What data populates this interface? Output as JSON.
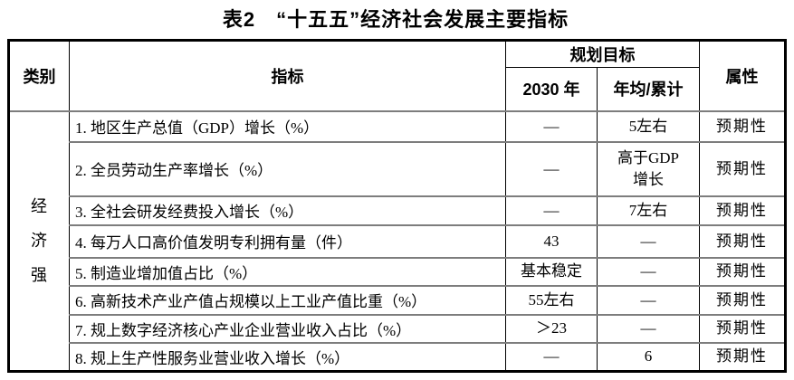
{
  "title": "表2　“十五五”经济社会发展主要指标",
  "table": {
    "headers": {
      "category": "类别",
      "indicator": "指标",
      "plan_target": "规划目标",
      "year_2030": "2030 年",
      "annual_cumulative": "年均/累计",
      "attribute": "属性"
    },
    "category": "经\n济\n强",
    "rows": [
      {
        "indicator": "1. 地区生产总值（GDP）增长（%）",
        "y2030": "—",
        "annual": "5左右",
        "attribute": "预期性"
      },
      {
        "indicator": "2. 全员劳动生产率增长（%）",
        "y2030": "—",
        "annual": "高于GDP\n增长",
        "attribute": "预期性"
      },
      {
        "indicator": "3. 全社会研发经费投入增长（%）",
        "y2030": "—",
        "annual": "7左右",
        "attribute": "预期性"
      },
      {
        "indicator": "4. 每万人口高价值发明专利拥有量（件）",
        "y2030": "43",
        "annual": "—",
        "attribute": "预期性"
      },
      {
        "indicator": "5. 制造业增加值占比（%）",
        "y2030": "基本稳定",
        "annual": "—",
        "attribute": "预期性"
      },
      {
        "indicator": "6. 高新技术产业产值占规模以上工业产值比重（%）",
        "y2030": "55左右",
        "annual": "—",
        "attribute": "预期性"
      },
      {
        "indicator": "7. 规上数字经济核心产业企业营业收入占比（%）",
        "y2030": "＞23",
        "annual": "—",
        "attribute": "预期性"
      },
      {
        "indicator": "8. 规上生产性服务业营业收入增长（%）",
        "y2030": "—",
        "annual": "6",
        "attribute": "预期性"
      }
    ]
  },
  "colors": {
    "text": "#000000",
    "outer_border": "#000000",
    "vertical_rule": "#000000",
    "row_divider": "#7d7d7d",
    "background": "#ffffff"
  }
}
